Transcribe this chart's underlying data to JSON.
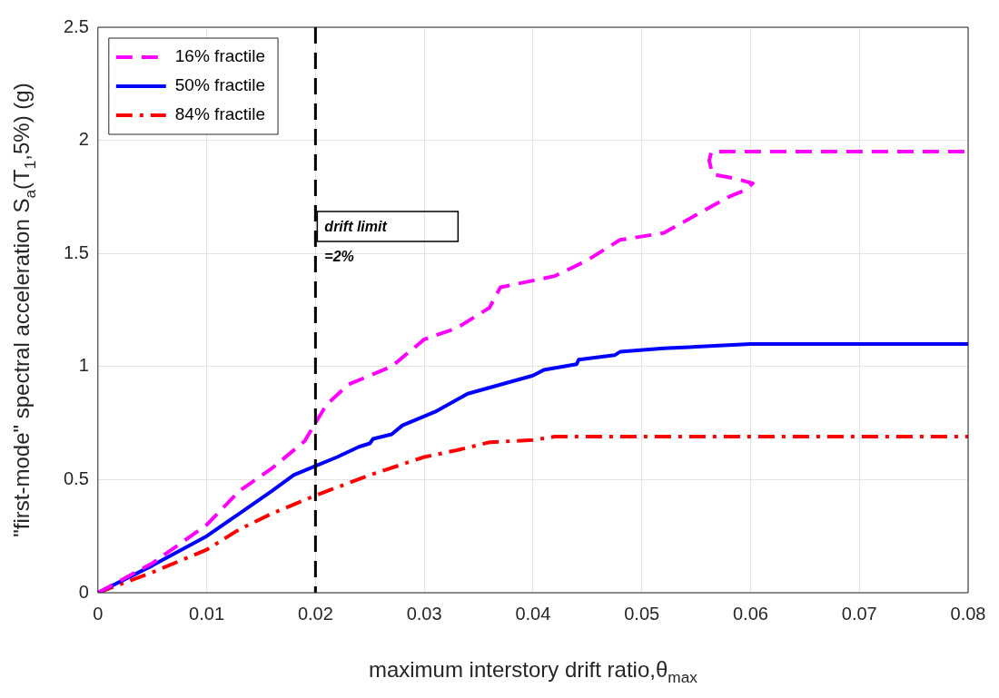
{
  "chart_data": {
    "type": "line",
    "xlabel": "maximum interstory drift ratio,θ$_{max}$",
    "ylabel": "\"first-mode\" spectral acceleration S$_{a}$(T$_{1}$,5%) (g)",
    "xlim": [
      0,
      0.08
    ],
    "xticks": [
      0,
      0.01,
      0.02,
      0.03,
      0.04,
      0.05,
      0.06,
      0.07,
      0.08
    ],
    "ylim": [
      0,
      2.5
    ],
    "yticks": [
      0,
      0.5,
      1,
      1.5,
      2,
      2.5
    ],
    "grid": true,
    "legend": "top left",
    "marker": "none",
    "ref_lines": [
      {
        "axis": "x",
        "value": 0.02,
        "label": "drift limit\n=2%",
        "color": "#000000",
        "line_style": "dashed"
      }
    ],
    "series": [
      {
        "name": "16% fractile",
        "color": "#ff00ff",
        "line_style": "dashed",
        "x": [
          0,
          0.005,
          0.01,
          0.013,
          0.016,
          0.019,
          0.02,
          0.021,
          0.023,
          0.027,
          0.03,
          0.033,
          0.036,
          0.037,
          0.04,
          0.042,
          0.045,
          0.048,
          0.052,
          0.055,
          0.058,
          0.0595,
          0.0602,
          0.0587,
          0.0565,
          0.0562,
          0.0564,
          0.08
        ],
        "values": [
          0,
          0.13,
          0.3,
          0.45,
          0.55,
          0.67,
          0.75,
          0.83,
          0.92,
          1.0,
          1.12,
          1.17,
          1.26,
          1.35,
          1.38,
          1.4,
          1.47,
          1.56,
          1.59,
          1.67,
          1.75,
          1.78,
          1.81,
          1.83,
          1.85,
          1.91,
          1.95,
          1.95
        ]
      },
      {
        "name": "50% fractile",
        "color": "#0000ff",
        "line_style": "solid",
        "x": [
          0,
          0.005,
          0.01,
          0.013,
          0.016,
          0.018,
          0.02,
          0.022,
          0.024,
          0.025,
          0.0253,
          0.027,
          0.028,
          0.03,
          0.031,
          0.034,
          0.037,
          0.04,
          0.041,
          0.044,
          0.0442,
          0.0475,
          0.048,
          0.052,
          0.06,
          0.08
        ],
        "values": [
          0,
          0.12,
          0.25,
          0.35,
          0.45,
          0.52,
          0.56,
          0.6,
          0.645,
          0.66,
          0.68,
          0.7,
          0.74,
          0.78,
          0.8,
          0.88,
          0.92,
          0.96,
          0.985,
          1.01,
          1.03,
          1.05,
          1.065,
          1.08,
          1.1,
          1.1
        ]
      },
      {
        "name": "84% fractile",
        "color": "#ff0000",
        "line_style": "dashdot",
        "x": [
          0,
          0.005,
          0.01,
          0.013,
          0.016,
          0.02,
          0.025,
          0.03,
          0.033,
          0.036,
          0.04,
          0.042,
          0.08
        ],
        "values": [
          0,
          0.09,
          0.19,
          0.28,
          0.35,
          0.43,
          0.52,
          0.6,
          0.63,
          0.665,
          0.675,
          0.69,
          0.69
        ]
      }
    ]
  }
}
